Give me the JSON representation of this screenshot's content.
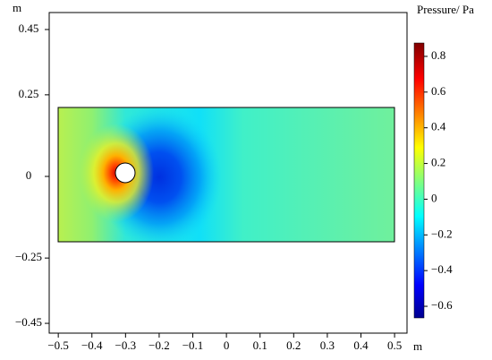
{
  "chart_data": {
    "type": "heatmap",
    "xlabel": "m",
    "ylabel": "m",
    "xlim": [
      -0.527,
      0.537
    ],
    "ylim": [
      -0.48,
      0.502
    ],
    "xticks": [
      {
        "value": -0.5,
        "label": "−0.5"
      },
      {
        "value": -0.4,
        "label": "−0.4"
      },
      {
        "value": -0.3,
        "label": "−0.3"
      },
      {
        "value": -0.2,
        "label": "−0.2"
      },
      {
        "value": -0.1,
        "label": "−0.1"
      },
      0,
      0.1,
      0.2,
      0.3,
      0.4,
      0.5
    ],
    "yticks": [
      0.45,
      0.25,
      0,
      {
        "value": -0.25,
        "label": "−0.25"
      },
      {
        "value": -0.45,
        "label": "−0.45"
      }
    ],
    "colorbar": {
      "title": "Pressure/ Pa",
      "lim": [
        -0.665,
        0.875
      ],
      "ticks": [
        0.8,
        0.6,
        0.4,
        0.2,
        0,
        {
          "value": -0.2,
          "label": "−0.2"
        },
        {
          "value": -0.4,
          "label": "−0.4"
        },
        {
          "value": -0.6,
          "label": "−0.6"
        }
      ]
    }
  }
}
